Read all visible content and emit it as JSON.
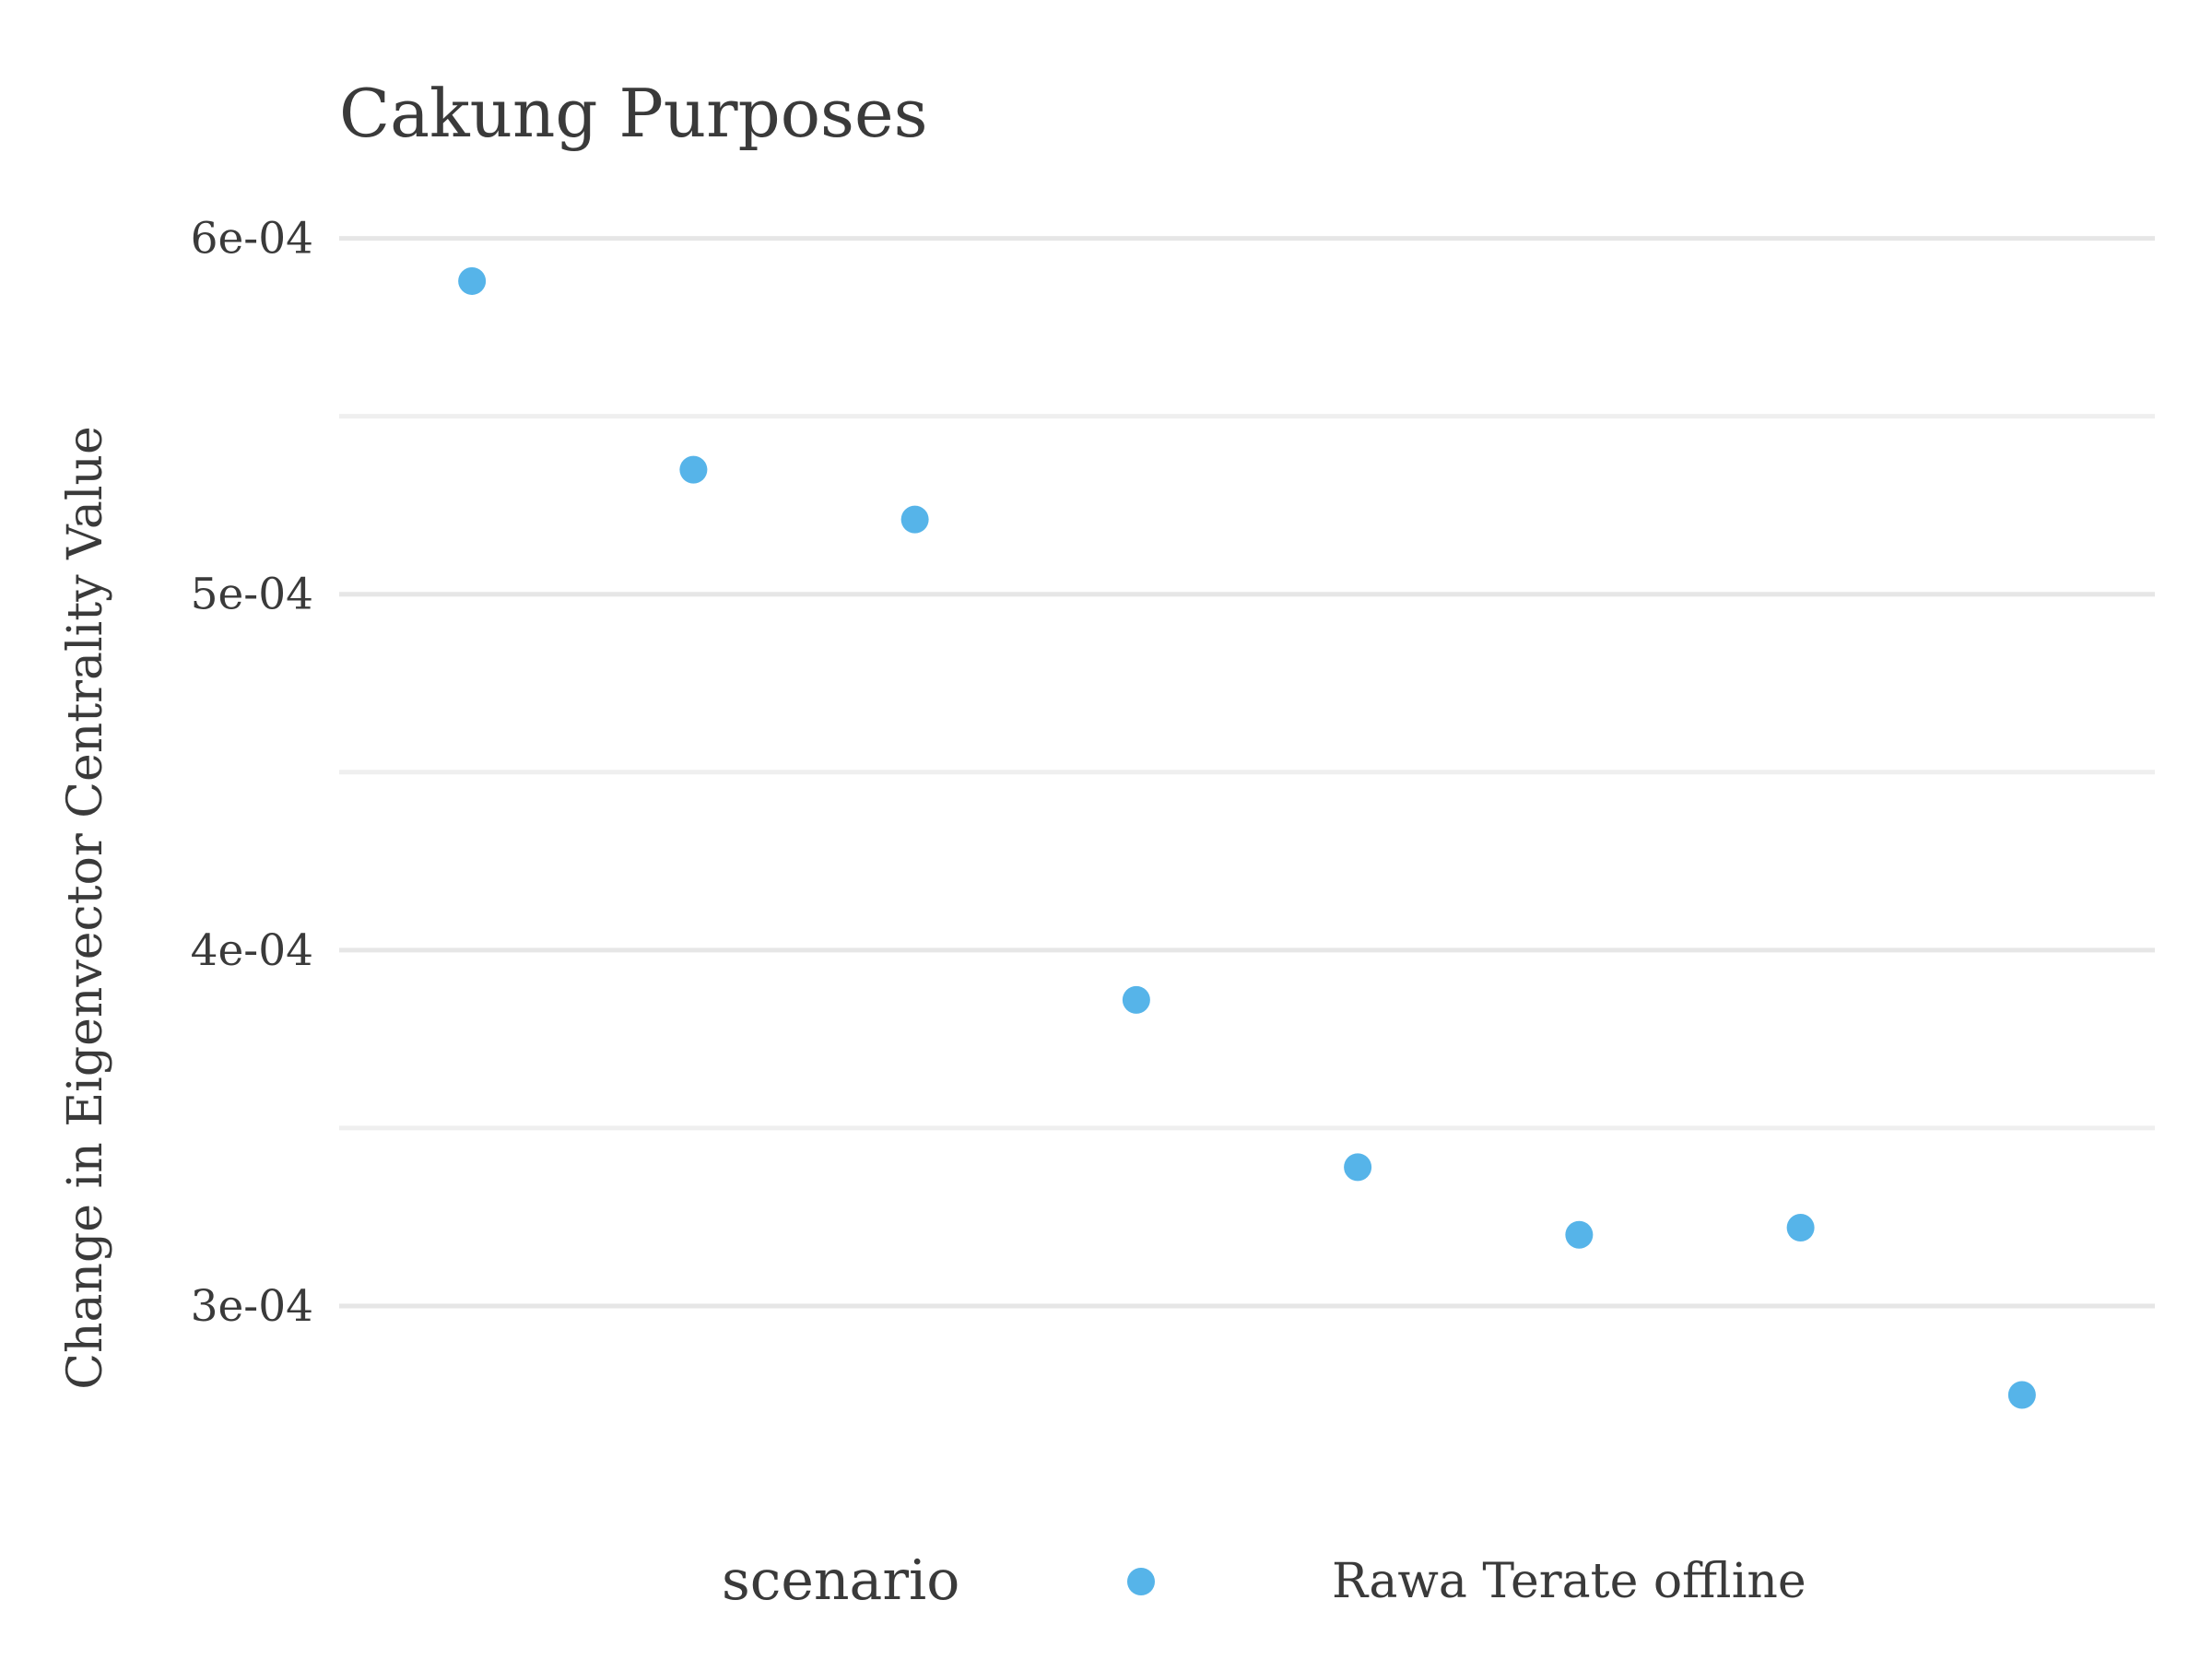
{
  "chart_data": {
    "type": "scatter",
    "title": "Cakung Purposes",
    "xlabel": "",
    "ylabel": "Change in Eigenvector Centrality Value",
    "x": [
      1,
      2,
      3,
      4,
      5,
      6,
      7,
      8
    ],
    "ylim": [
      0.00025,
      0.00061
    ],
    "y_ticks": [
      0.0003,
      0.0004,
      0.0005,
      0.0006
    ],
    "y_tick_labels": [
      "3e-04",
      "4e-04",
      "5e-04",
      "6e-04"
    ],
    "grid": true,
    "series": [
      {
        "name": "Rawa Terate offline",
        "color": "#56B4E9",
        "values": [
          0.000588,
          0.000535,
          0.000521,
          0.000386,
          0.000339,
          0.00032,
          0.000322,
          0.000275
        ]
      }
    ],
    "legend": {
      "position": "bottom",
      "title": "scenario"
    }
  }
}
